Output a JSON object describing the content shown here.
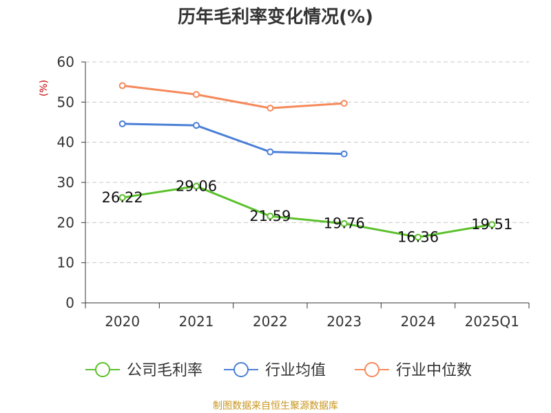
{
  "chart_data": {
    "type": "line",
    "title": "历年毛利率变化情况(%)",
    "ylabel": "(%)",
    "xlabel": "",
    "categories": [
      "2020",
      "2021",
      "2022",
      "2023",
      "2024",
      "2025Q1"
    ],
    "ylim": [
      0,
      60
    ],
    "yticks": [
      "0",
      "10",
      "20",
      "30",
      "40",
      "50",
      "60"
    ],
    "grid": true,
    "legend_position": "bottom",
    "series": [
      {
        "name": "公司毛利率",
        "color": "#5ac02a",
        "values": [
          26.22,
          29.06,
          21.59,
          19.76,
          16.36,
          19.51
        ],
        "labels": [
          "26.22",
          "29.06",
          "21.59",
          "19.76",
          "16.36",
          "19.51"
        ]
      },
      {
        "name": "行业均值",
        "color": "#4a7fd6",
        "values": [
          44.6,
          44.2,
          37.6,
          37.1,
          null,
          null
        ]
      },
      {
        "name": "行业中位数",
        "color": "#f5895a",
        "values": [
          54.1,
          51.9,
          48.5,
          49.7,
          null,
          null
        ]
      }
    ],
    "source": "制图数据来自恒生聚源数据库"
  }
}
